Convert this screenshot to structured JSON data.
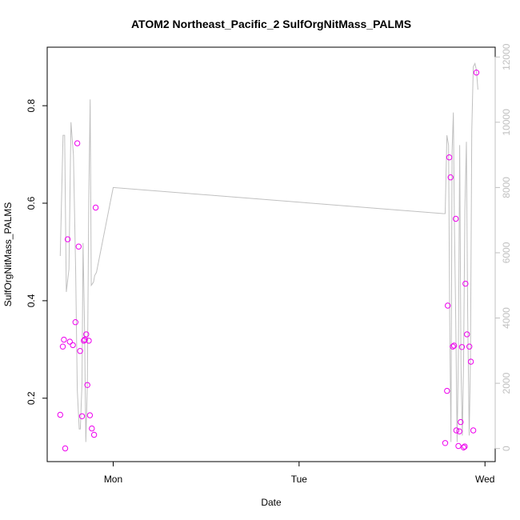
{
  "chart_data": {
    "type": "scatter",
    "title": "ATOM2 Northeast_Pacific_2 SulfOrgNitMass_PALMS",
    "xlabel": "Date",
    "ylabel": "SulfOrgNitMass_PALMS",
    "x_ticks": [
      {
        "label": "Mon",
        "value": 1.0
      },
      {
        "label": "Tue",
        "value": 2.0
      },
      {
        "label": "Wed",
        "value": 3.0
      }
    ],
    "y_ticks": [
      0.2,
      0.4,
      0.6,
      0.8
    ],
    "y2_ticks": [
      0,
      2000,
      4000,
      6000,
      8000,
      10000,
      12000
    ],
    "ylim": [
      0.07,
      0.92
    ],
    "y2lim": [
      -400,
      12300
    ],
    "xlim": [
      0.645,
      3.055
    ],
    "grid": false,
    "colors": {
      "points": "#ee00ee",
      "secondary_line": "#c0c0c0",
      "secondary_axis": "#c0c0c0",
      "frame": "#000000"
    },
    "series": [
      {
        "type": "scatter",
        "axis": "left",
        "x": [
          0.715,
          0.729,
          0.735,
          0.742,
          0.755,
          0.767,
          0.783,
          0.797,
          0.807,
          0.814,
          0.822,
          0.832,
          0.842,
          0.847,
          0.855,
          0.861,
          0.869,
          0.875,
          0.885,
          0.897,
          0.906,
          2.786,
          2.796,
          2.8,
          2.808,
          2.815,
          2.827,
          2.834,
          2.843,
          2.846,
          2.857,
          2.862,
          2.869,
          2.876,
          2.885,
          2.891,
          2.895,
          2.903,
          2.916,
          2.924,
          2.937,
          2.954
        ],
        "y": [
          0.166,
          0.306,
          0.32,
          0.097,
          0.526,
          0.316,
          0.309,
          0.356,
          0.723,
          0.511,
          0.297,
          0.163,
          0.318,
          0.32,
          0.331,
          0.227,
          0.318,
          0.165,
          0.138,
          0.125,
          0.591,
          0.108,
          0.215,
          0.39,
          0.694,
          0.653,
          0.306,
          0.308,
          0.568,
          0.134,
          0.102,
          0.132,
          0.151,
          0.305,
          0.099,
          0.101,
          0.435,
          0.331,
          0.306,
          0.275,
          0.134,
          0.868
        ]
      },
      {
        "type": "line",
        "axis": "right",
        "x": [
          0.715,
          0.73,
          0.739,
          0.748,
          0.762,
          0.773,
          0.786,
          0.798,
          0.807,
          0.817,
          0.823,
          0.832,
          0.838,
          0.845,
          0.853,
          0.861,
          0.869,
          0.876,
          0.882,
          0.894,
          0.9,
          0.91,
          1.0,
          2.775,
          2.786,
          2.795,
          2.804,
          2.81,
          2.817,
          2.823,
          2.83,
          2.836,
          2.843,
          2.85,
          2.857,
          2.864,
          2.871,
          2.878,
          2.885,
          2.892,
          2.9,
          2.907,
          2.915,
          2.922,
          2.929,
          2.937,
          2.946,
          2.954,
          2.962
        ],
        "y": [
          5900,
          9600,
          9600,
          4800,
          5500,
          10000,
          9000,
          5400,
          1800,
          600,
          600,
          2000,
          6300,
          4000,
          200,
          2000,
          7700,
          10700,
          5000,
          5100,
          5300,
          5400,
          8000,
          7200,
          7200,
          9600,
          9300,
          4000,
          200,
          9100,
          10300,
          6700,
          3900,
          200,
          2900,
          9300,
          2600,
          400,
          2700,
          7300,
          9400,
          4100,
          400,
          2800,
          9700,
          11700,
          11800,
          11600,
          11000
        ]
      }
    ]
  }
}
